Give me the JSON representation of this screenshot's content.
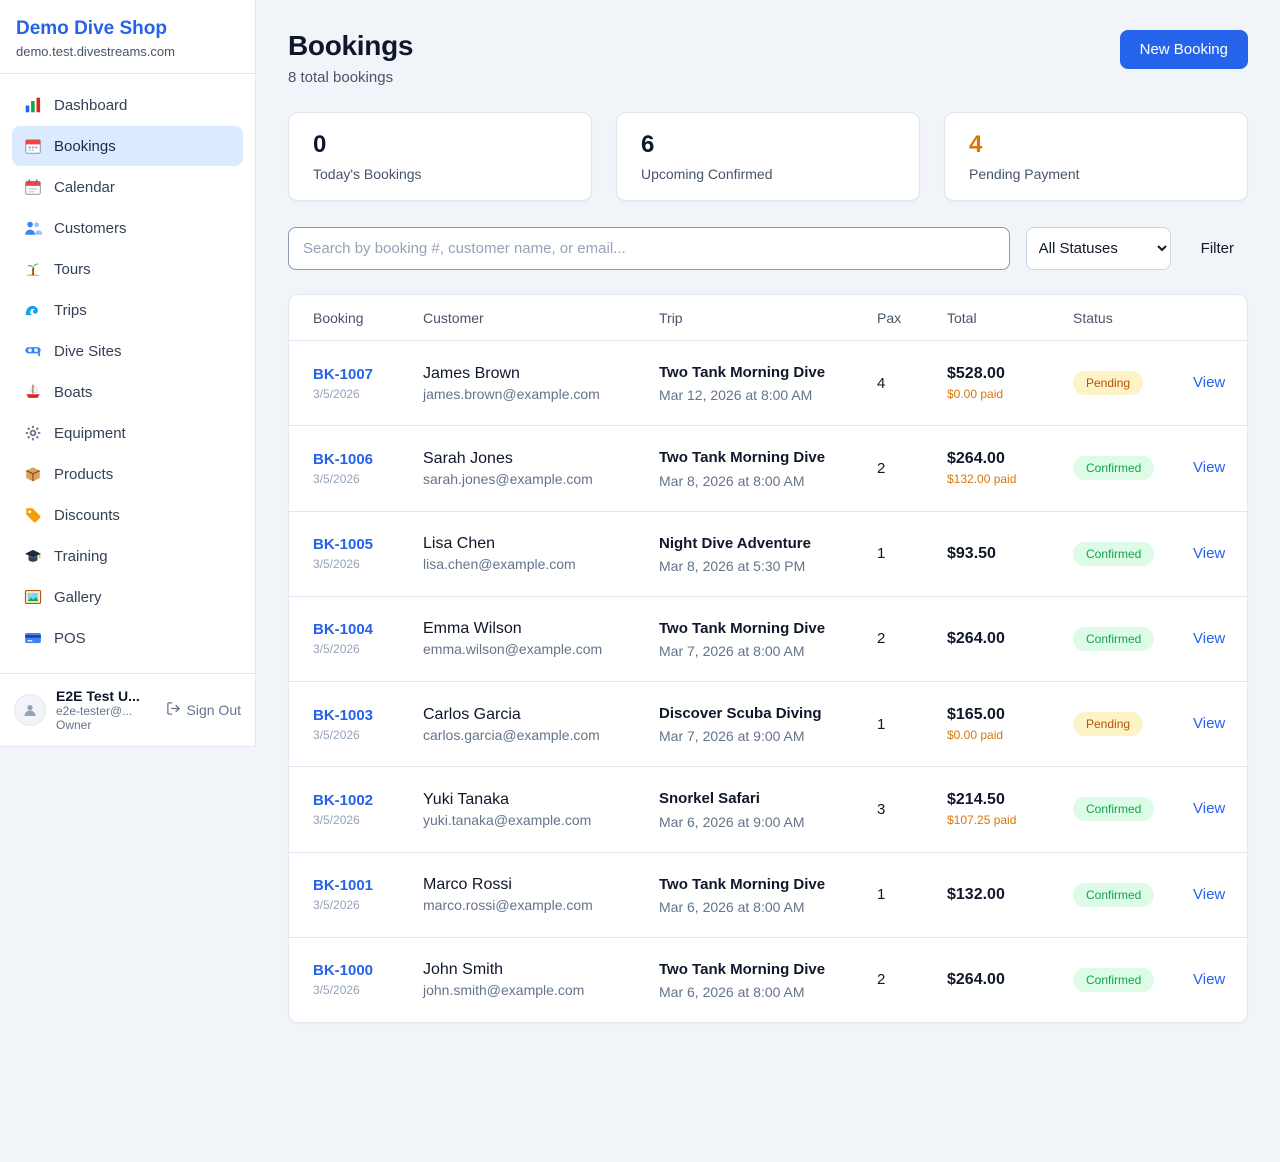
{
  "sidebar": {
    "brand": "Demo Dive Shop",
    "domain": "demo.test.divestreams.com",
    "items": [
      {
        "label": "Dashboard",
        "icon": "dashboard-icon",
        "active": false
      },
      {
        "label": "Bookings",
        "icon": "bookings-icon",
        "active": true
      },
      {
        "label": "Calendar",
        "icon": "calendar-icon",
        "active": false
      },
      {
        "label": "Customers",
        "icon": "customers-icon",
        "active": false
      },
      {
        "label": "Tours",
        "icon": "tours-icon",
        "active": false
      },
      {
        "label": "Trips",
        "icon": "trips-icon",
        "active": false
      },
      {
        "label": "Dive Sites",
        "icon": "dive-sites-icon",
        "active": false
      },
      {
        "label": "Boats",
        "icon": "boats-icon",
        "active": false
      },
      {
        "label": "Equipment",
        "icon": "equipment-icon",
        "active": false
      },
      {
        "label": "Products",
        "icon": "products-icon",
        "active": false
      },
      {
        "label": "Discounts",
        "icon": "discounts-icon",
        "active": false
      },
      {
        "label": "Training",
        "icon": "training-icon",
        "active": false
      },
      {
        "label": "Gallery",
        "icon": "gallery-icon",
        "active": false
      },
      {
        "label": "POS",
        "icon": "pos-icon",
        "active": false
      }
    ],
    "user": {
      "name": "E2E Test U...",
      "email": "e2e-tester@...",
      "role": "Owner",
      "signout": "Sign Out"
    }
  },
  "header": {
    "title": "Bookings",
    "subtitle": "8 total bookings",
    "new_booking_label": "New Booking"
  },
  "stats": [
    {
      "value": "0",
      "label": "Today's Bookings"
    },
    {
      "value": "6",
      "label": "Upcoming Confirmed"
    },
    {
      "value": "4",
      "label": "Pending Payment"
    }
  ],
  "filters": {
    "search_placeholder": "Search by booking #, customer name, or email...",
    "status_selected": "All Statuses",
    "filter_label": "Filter"
  },
  "table": {
    "headers": [
      "Booking",
      "Customer",
      "Trip",
      "Pax",
      "Total",
      "Status"
    ],
    "rows": [
      {
        "booking_id": "BK-1007",
        "booking_date": "3/5/2026",
        "customer_name": "James Brown",
        "customer_email": "james.brown@example.com",
        "trip_name": "Two Tank Morning Dive",
        "trip_time": "Mar 12, 2026 at 8:00 AM",
        "pax": "4",
        "total": "$528.00",
        "paid": "$0.00 paid",
        "status": "Pending",
        "action": "View"
      },
      {
        "booking_id": "BK-1006",
        "booking_date": "3/5/2026",
        "customer_name": "Sarah Jones",
        "customer_email": "sarah.jones@example.com",
        "trip_name": "Two Tank Morning Dive",
        "trip_time": "Mar 8, 2026 at 8:00 AM",
        "pax": "2",
        "total": "$264.00",
        "paid": "$132.00 paid",
        "status": "Confirmed",
        "action": "View"
      },
      {
        "booking_id": "BK-1005",
        "booking_date": "3/5/2026",
        "customer_name": "Lisa Chen",
        "customer_email": "lisa.chen@example.com",
        "trip_name": "Night Dive Adventure",
        "trip_time": "Mar 8, 2026 at 5:30 PM",
        "pax": "1",
        "total": "$93.50",
        "paid": "",
        "status": "Confirmed",
        "action": "View"
      },
      {
        "booking_id": "BK-1004",
        "booking_date": "3/5/2026",
        "customer_name": "Emma Wilson",
        "customer_email": "emma.wilson@example.com",
        "trip_name": "Two Tank Morning Dive",
        "trip_time": "Mar 7, 2026 at 8:00 AM",
        "pax": "2",
        "total": "$264.00",
        "paid": "",
        "status": "Confirmed",
        "action": "View"
      },
      {
        "booking_id": "BK-1003",
        "booking_date": "3/5/2026",
        "customer_name": "Carlos Garcia",
        "customer_email": "carlos.garcia@example.com",
        "trip_name": "Discover Scuba Diving",
        "trip_time": "Mar 7, 2026 at 9:00 AM",
        "pax": "1",
        "total": "$165.00",
        "paid": "$0.00 paid",
        "status": "Pending",
        "action": "View"
      },
      {
        "booking_id": "BK-1002",
        "booking_date": "3/5/2026",
        "customer_name": "Yuki Tanaka",
        "customer_email": "yuki.tanaka@example.com",
        "trip_name": "Snorkel Safari",
        "trip_time": "Mar 6, 2026 at 9:00 AM",
        "pax": "3",
        "total": "$214.50",
        "paid": "$107.25 paid",
        "status": "Confirmed",
        "action": "View"
      },
      {
        "booking_id": "BK-1001",
        "booking_date": "3/5/2026",
        "customer_name": "Marco Rossi",
        "customer_email": "marco.rossi@example.com",
        "trip_name": "Two Tank Morning Dive",
        "trip_time": "Mar 6, 2026 at 8:00 AM",
        "pax": "1",
        "total": "$132.00",
        "paid": "",
        "status": "Confirmed",
        "action": "View"
      },
      {
        "booking_id": "BK-1000",
        "booking_date": "3/5/2026",
        "customer_name": "John Smith",
        "customer_email": "john.smith@example.com",
        "trip_name": "Two Tank Morning Dive",
        "trip_time": "Mar 6, 2026 at 8:00 AM",
        "pax": "2",
        "total": "$264.00",
        "paid": "",
        "status": "Confirmed",
        "action": "View"
      }
    ]
  },
  "colors": {
    "accent_blue": "#2563eb",
    "pending_text": "#b45309",
    "pending_bg": "#fef3c7",
    "confirmed_text": "#16a34a",
    "confirmed_bg": "#dcfce7",
    "warning_orange": "#d97706"
  }
}
